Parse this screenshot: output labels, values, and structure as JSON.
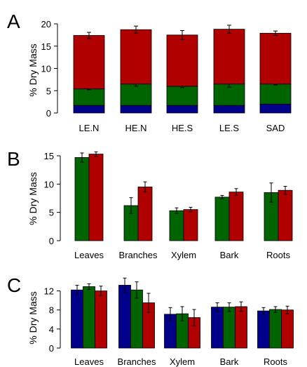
{
  "chart_data": [
    {
      "panel": "A",
      "type": "bar",
      "stacked": true,
      "ylabel": "% Dry Mass",
      "ylim": [
        0,
        20
      ],
      "yticks": [
        0,
        5,
        10,
        15,
        20
      ],
      "categories": [
        "LE.N",
        "HE.N",
        "HE.S",
        "LE.S",
        "SAD"
      ],
      "series": [
        {
          "color": "#00008b",
          "values": [
            1.7,
            1.7,
            1.7,
            1.7,
            2.0
          ],
          "err": [
            0,
            0,
            0,
            0,
            0
          ]
        },
        {
          "color": "#006400",
          "values": [
            3.7,
            4.8,
            4.3,
            4.8,
            4.5
          ],
          "err": [
            0.2,
            0.5,
            0.3,
            0.7,
            0.2
          ]
        },
        {
          "color": "#b00000",
          "values": [
            12.0,
            12.2,
            11.5,
            12.3,
            11.4
          ],
          "err": [
            0.7,
            0.8,
            1.0,
            0.9,
            0.5
          ]
        }
      ]
    },
    {
      "panel": "B",
      "type": "bar",
      "ylabel": "% Dry Mass",
      "ylim": [
        0,
        15
      ],
      "yticks": [
        0,
        5,
        10,
        15
      ],
      "categories": [
        "Leaves",
        "Branches",
        "Xylem",
        "Bark",
        "Roots"
      ],
      "series": [
        {
          "color": "#006400",
          "values": [
            14.7,
            6.2,
            5.3,
            7.7,
            8.5
          ],
          "err": [
            0.8,
            1.4,
            0.5,
            0.3,
            1.7
          ]
        },
        {
          "color": "#b00000",
          "values": [
            15.3,
            9.5,
            5.5,
            8.6,
            8.9
          ],
          "err": [
            0.4,
            0.9,
            0.4,
            0.6,
            0.7
          ]
        }
      ]
    },
    {
      "panel": "C",
      "type": "bar",
      "ylabel": "% Dry Mass",
      "ylim": [
        0,
        14
      ],
      "yticks": [
        0,
        4,
        8,
        12
      ],
      "categories": [
        "Leaves",
        "Branches",
        "Xylem",
        "Bark",
        "Roots"
      ],
      "series": [
        {
          "color": "#00008b",
          "values": [
            12.2,
            13.2,
            7.1,
            8.6,
            7.8
          ],
          "err": [
            1.0,
            1.5,
            1.4,
            0.9,
            0.7
          ]
        },
        {
          "color": "#006400",
          "values": [
            12.9,
            12.2,
            7.2,
            8.6,
            8.1
          ],
          "err": [
            0.6,
            1.7,
            1.5,
            0.9,
            0.6
          ]
        },
        {
          "color": "#b00000",
          "values": [
            12.0,
            9.5,
            6.4,
            8.7,
            8.0
          ],
          "err": [
            1.0,
            2.0,
            1.7,
            1.0,
            0.8
          ]
        }
      ]
    }
  ]
}
